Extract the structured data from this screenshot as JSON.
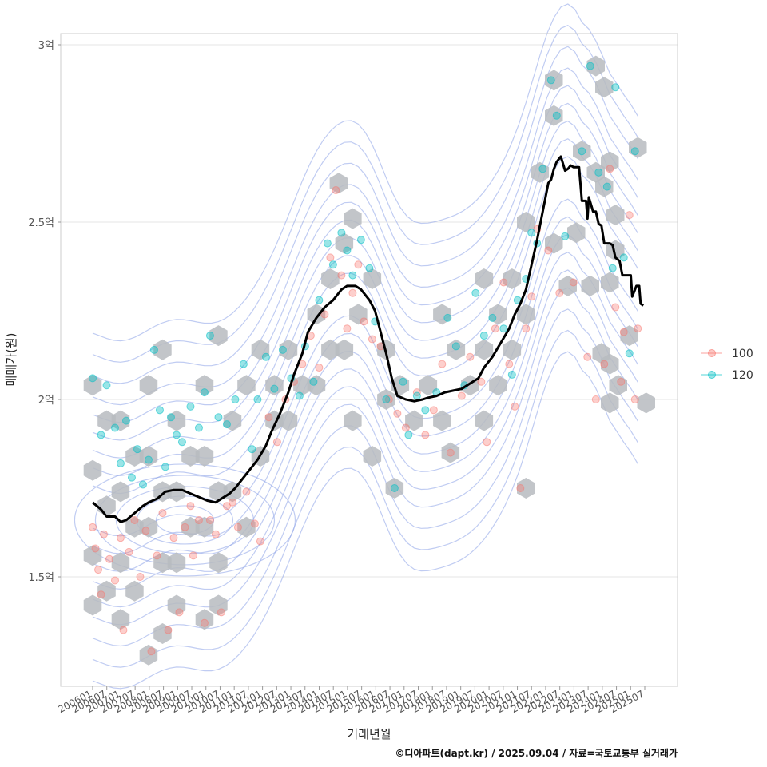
{
  "chart_data": {
    "type": "scatter",
    "title": "",
    "xlabel": "거래년월",
    "ylabel": "매매가(원)",
    "caption": "©디아파트(dapt.kr) / 2025.09.04 / 자료=국토교통부 실거래가",
    "x_domain": [
      2006.0,
      2025.75
    ],
    "ylim": [
      1.2,
      3.05
    ],
    "y_ticks": [
      {
        "value": 1.5,
        "label": "1.5억"
      },
      {
        "value": 2.0,
        "label": "2억"
      },
      {
        "value": 2.5,
        "label": "2.5억"
      },
      {
        "value": 3.0,
        "label": "3억"
      }
    ],
    "x_ticks": [
      "200601",
      "200607",
      "200701",
      "200707",
      "200801",
      "200807",
      "200901",
      "200907",
      "201001",
      "201007",
      "201101",
      "201107",
      "201201",
      "201207",
      "201301",
      "201307",
      "201401",
      "201407",
      "201501",
      "201507",
      "201601",
      "201607",
      "201701",
      "201707",
      "201801",
      "201807",
      "201901",
      "201907",
      "202001",
      "202007",
      "202101",
      "202107",
      "202201",
      "202207",
      "202301",
      "202307",
      "202401",
      "202407",
      "202501",
      "202507"
    ],
    "legend": {
      "position": "right",
      "entries": [
        {
          "name": "100",
          "color": "#F8766D"
        },
        {
          "name": "120",
          "color": "#00BFC4"
        }
      ]
    },
    "hex_color": "#B7BBC0",
    "contour_color": "#8DA2E8",
    "trend_line": {
      "name": "moving-average",
      "color": "#000000",
      "points": [
        [
          2006.0,
          1.71
        ],
        [
          2006.3,
          1.69
        ],
        [
          2006.5,
          1.67
        ],
        [
          2006.8,
          1.67
        ],
        [
          2007.0,
          1.655
        ],
        [
          2007.2,
          1.66
        ],
        [
          2007.5,
          1.68
        ],
        [
          2007.8,
          1.7
        ],
        [
          2008.0,
          1.71
        ],
        [
          2008.3,
          1.72
        ],
        [
          2008.6,
          1.74
        ],
        [
          2008.9,
          1.745
        ],
        [
          2009.2,
          1.745
        ],
        [
          2009.5,
          1.735
        ],
        [
          2009.8,
          1.725
        ],
        [
          2010.1,
          1.715
        ],
        [
          2010.4,
          1.71
        ],
        [
          2010.6,
          1.72
        ],
        [
          2010.9,
          1.735
        ],
        [
          2011.1,
          1.75
        ],
        [
          2011.3,
          1.77
        ],
        [
          2011.6,
          1.8
        ],
        [
          2011.9,
          1.83
        ],
        [
          2012.2,
          1.87
        ],
        [
          2012.4,
          1.91
        ],
        [
          2012.7,
          1.96
        ],
        [
          2013.0,
          2.02
        ],
        [
          2013.2,
          2.07
        ],
        [
          2013.5,
          2.13
        ],
        [
          2013.7,
          2.19
        ],
        [
          2014.0,
          2.23
        ],
        [
          2014.3,
          2.26
        ],
        [
          2014.6,
          2.28
        ],
        [
          2014.9,
          2.31
        ],
        [
          2015.1,
          2.32
        ],
        [
          2015.4,
          2.32
        ],
        [
          2015.6,
          2.31
        ],
        [
          2015.9,
          2.28
        ],
        [
          2016.1,
          2.25
        ],
        [
          2016.3,
          2.19
        ],
        [
          2016.5,
          2.13
        ],
        [
          2016.7,
          2.06
        ],
        [
          2016.9,
          2.01
        ],
        [
          2017.2,
          2.0
        ],
        [
          2017.5,
          1.995
        ],
        [
          2017.8,
          2.0
        ],
        [
          2018.0,
          2.005
        ],
        [
          2018.3,
          2.01
        ],
        [
          2018.6,
          2.02
        ],
        [
          2018.9,
          2.025
        ],
        [
          2019.2,
          2.03
        ],
        [
          2019.5,
          2.045
        ],
        [
          2019.8,
          2.06
        ],
        [
          2020.0,
          2.09
        ],
        [
          2020.3,
          2.12
        ],
        [
          2020.6,
          2.16
        ],
        [
          2020.9,
          2.2
        ],
        [
          2021.1,
          2.24
        ],
        [
          2021.3,
          2.27
        ],
        [
          2021.5,
          2.31
        ],
        [
          2021.7,
          2.38
        ],
        [
          2021.9,
          2.45
        ],
        [
          2022.1,
          2.53
        ],
        [
          2022.3,
          2.61
        ],
        [
          2022.4,
          2.62
        ],
        [
          2022.5,
          2.65
        ],
        [
          2022.6,
          2.67
        ],
        [
          2022.75,
          2.685
        ],
        [
          2022.9,
          2.645
        ],
        [
          2023.0,
          2.65
        ],
        [
          2023.1,
          2.66
        ],
        [
          2023.2,
          2.655
        ],
        [
          2023.4,
          2.655
        ],
        [
          2023.5,
          2.56
        ],
        [
          2023.65,
          2.56
        ],
        [
          2023.7,
          2.51
        ],
        [
          2023.75,
          2.57
        ],
        [
          2023.9,
          2.53
        ],
        [
          2024.0,
          2.53
        ],
        [
          2024.1,
          2.495
        ],
        [
          2024.2,
          2.49
        ],
        [
          2024.3,
          2.44
        ],
        [
          2024.5,
          2.44
        ],
        [
          2024.6,
          2.435
        ],
        [
          2024.7,
          2.4
        ],
        [
          2024.85,
          2.39
        ],
        [
          2024.95,
          2.35
        ],
        [
          2025.1,
          2.35
        ],
        [
          2025.25,
          2.35
        ],
        [
          2025.3,
          2.29
        ],
        [
          2025.45,
          2.32
        ],
        [
          2025.55,
          2.32
        ],
        [
          2025.6,
          2.27
        ],
        [
          2025.7,
          2.265
        ]
      ]
    },
    "points_series_100": [
      [
        2006.0,
        1.64
      ],
      [
        2006.1,
        1.58
      ],
      [
        2006.2,
        1.52
      ],
      [
        2006.3,
        1.45
      ],
      [
        2006.4,
        1.62
      ],
      [
        2006.6,
        1.55
      ],
      [
        2006.8,
        1.49
      ],
      [
        2007.0,
        1.61
      ],
      [
        2007.1,
        1.35
      ],
      [
        2007.3,
        1.57
      ],
      [
        2007.5,
        1.66
      ],
      [
        2007.7,
        1.5
      ],
      [
        2007.9,
        1.63
      ],
      [
        2008.1,
        1.29
      ],
      [
        2008.3,
        1.56
      ],
      [
        2008.5,
        1.68
      ],
      [
        2008.7,
        1.35
      ],
      [
        2008.9,
        1.61
      ],
      [
        2009.1,
        1.4
      ],
      [
        2009.3,
        1.64
      ],
      [
        2009.5,
        1.7
      ],
      [
        2009.6,
        1.56
      ],
      [
        2009.8,
        1.66
      ],
      [
        2010.0,
        1.37
      ],
      [
        2010.2,
        1.66
      ],
      [
        2010.4,
        1.62
      ],
      [
        2010.6,
        1.4
      ],
      [
        2010.8,
        1.7
      ],
      [
        2011.0,
        1.71
      ],
      [
        2011.2,
        1.64
      ],
      [
        2011.5,
        1.74
      ],
      [
        2011.8,
        1.65
      ],
      [
        2012.0,
        1.6
      ],
      [
        2012.3,
        1.95
      ],
      [
        2012.6,
        1.88
      ],
      [
        2012.9,
        2.0
      ],
      [
        2013.2,
        2.05
      ],
      [
        2013.5,
        2.1
      ],
      [
        2013.8,
        2.18
      ],
      [
        2014.1,
        2.09
      ],
      [
        2014.3,
        2.24
      ],
      [
        2014.5,
        2.4
      ],
      [
        2014.7,
        2.59
      ],
      [
        2014.9,
        2.35
      ],
      [
        2015.1,
        2.2
      ],
      [
        2015.3,
        2.3
      ],
      [
        2015.5,
        2.38
      ],
      [
        2015.7,
        2.22
      ],
      [
        2016.0,
        2.17
      ],
      [
        2016.3,
        2.15
      ],
      [
        2016.6,
        2.0
      ],
      [
        2016.9,
        1.96
      ],
      [
        2017.2,
        1.92
      ],
      [
        2017.6,
        2.02
      ],
      [
        2017.9,
        1.9
      ],
      [
        2018.2,
        1.97
      ],
      [
        2018.5,
        2.1
      ],
      [
        2018.8,
        1.85
      ],
      [
        2019.2,
        2.01
      ],
      [
        2019.5,
        2.12
      ],
      [
        2019.9,
        2.05
      ],
      [
        2020.1,
        1.88
      ],
      [
        2020.4,
        2.2
      ],
      [
        2020.7,
        2.33
      ],
      [
        2020.9,
        2.1
      ],
      [
        2021.1,
        1.98
      ],
      [
        2021.3,
        1.75
      ],
      [
        2021.5,
        2.2
      ],
      [
        2021.7,
        2.29
      ],
      [
        2021.9,
        2.48
      ],
      [
        2022.3,
        2.42
      ],
      [
        2022.7,
        2.3
      ],
      [
        2023.2,
        2.33
      ],
      [
        2023.7,
        2.12
      ],
      [
        2024.0,
        2.0
      ],
      [
        2024.3,
        2.1
      ],
      [
        2024.5,
        2.65
      ],
      [
        2024.9,
        2.05
      ],
      [
        2025.0,
        2.19
      ],
      [
        2025.2,
        2.52
      ],
      [
        2025.4,
        2.0
      ],
      [
        2025.5,
        2.2
      ],
      [
        2024.7,
        2.26
      ]
    ],
    "points_series_120": [
      [
        2006.0,
        2.06
      ],
      [
        2006.3,
        1.9
      ],
      [
        2006.5,
        2.04
      ],
      [
        2006.8,
        1.92
      ],
      [
        2007.0,
        1.82
      ],
      [
        2007.2,
        1.94
      ],
      [
        2007.4,
        1.78
      ],
      [
        2007.6,
        1.86
      ],
      [
        2007.8,
        1.76
      ],
      [
        2008.0,
        1.83
      ],
      [
        2008.2,
        2.14
      ],
      [
        2008.4,
        1.97
      ],
      [
        2008.6,
        1.81
      ],
      [
        2008.8,
        1.95
      ],
      [
        2009.0,
        1.9
      ],
      [
        2009.2,
        1.88
      ],
      [
        2009.5,
        1.98
      ],
      [
        2009.8,
        1.92
      ],
      [
        2010.0,
        2.02
      ],
      [
        2010.2,
        2.18
      ],
      [
        2010.5,
        1.95
      ],
      [
        2010.8,
        1.93
      ],
      [
        2011.1,
        2.0
      ],
      [
        2011.4,
        2.1
      ],
      [
        2011.7,
        1.86
      ],
      [
        2011.9,
        2.0
      ],
      [
        2012.2,
        2.12
      ],
      [
        2012.5,
        2.03
      ],
      [
        2012.8,
        2.14
      ],
      [
        2013.1,
        2.06
      ],
      [
        2013.4,
        2.01
      ],
      [
        2013.6,
        2.15
      ],
      [
        2013.9,
        2.05
      ],
      [
        2014.1,
        2.28
      ],
      [
        2014.4,
        2.44
      ],
      [
        2014.6,
        2.38
      ],
      [
        2014.9,
        2.47
      ],
      [
        2015.1,
        2.42
      ],
      [
        2015.3,
        2.35
      ],
      [
        2015.6,
        2.45
      ],
      [
        2015.9,
        2.37
      ],
      [
        2016.1,
        2.22
      ],
      [
        2016.5,
        2.0
      ],
      [
        2016.8,
        1.75
      ],
      [
        2017.1,
        2.05
      ],
      [
        2017.3,
        1.9
      ],
      [
        2017.6,
        2.01
      ],
      [
        2017.9,
        1.97
      ],
      [
        2018.3,
        2.02
      ],
      [
        2018.7,
        2.23
      ],
      [
        2019.0,
        2.15
      ],
      [
        2019.3,
        2.04
      ],
      [
        2019.7,
        2.3
      ],
      [
        2020.0,
        2.18
      ],
      [
        2020.3,
        2.23
      ],
      [
        2020.7,
        2.2
      ],
      [
        2021.0,
        2.07
      ],
      [
        2021.2,
        2.28
      ],
      [
        2021.5,
        2.34
      ],
      [
        2021.7,
        2.47
      ],
      [
        2021.9,
        2.44
      ],
      [
        2022.1,
        2.65
      ],
      [
        2022.4,
        2.9
      ],
      [
        2022.6,
        2.8
      ],
      [
        2022.9,
        2.46
      ],
      [
        2023.5,
        2.7
      ],
      [
        2023.8,
        2.94
      ],
      [
        2024.1,
        2.64
      ],
      [
        2024.4,
        2.6
      ],
      [
        2024.7,
        2.88
      ],
      [
        2025.0,
        2.4
      ],
      [
        2025.2,
        2.13
      ],
      [
        2025.4,
        2.7
      ],
      [
        2024.6,
        2.37
      ]
    ],
    "hexbins": [
      [
        2006.0,
        2.04
      ],
      [
        2006.5,
        1.94
      ],
      [
        2006.0,
        1.8
      ],
      [
        2006.5,
        1.7
      ],
      [
        2006.0,
        1.56
      ],
      [
        2006.5,
        1.46
      ],
      [
        2006.0,
        1.42
      ],
      [
        2007.0,
        1.94
      ],
      [
        2007.5,
        1.84
      ],
      [
        2007.0,
        1.74
      ],
      [
        2007.5,
        1.64
      ],
      [
        2007.0,
        1.54
      ],
      [
        2007.5,
        1.46
      ],
      [
        2007.0,
        1.38
      ],
      [
        2008.0,
        2.04
      ],
      [
        2008.5,
        2.14
      ],
      [
        2008.0,
        1.84
      ],
      [
        2008.5,
        1.74
      ],
      [
        2008.0,
        1.64
      ],
      [
        2008.5,
        1.54
      ],
      [
        2008.0,
        1.28
      ],
      [
        2008.5,
        1.34
      ],
      [
        2009.0,
        1.94
      ],
      [
        2009.5,
        1.84
      ],
      [
        2009.0,
        1.74
      ],
      [
        2009.5,
        1.64
      ],
      [
        2009.0,
        1.54
      ],
      [
        2009.0,
        1.42
      ],
      [
        2010.0,
        2.04
      ],
      [
        2010.5,
        2.18
      ],
      [
        2010.0,
        1.84
      ],
      [
        2010.5,
        1.74
      ],
      [
        2010.0,
        1.64
      ],
      [
        2010.5,
        1.54
      ],
      [
        2010.0,
        1.38
      ],
      [
        2010.5,
        1.42
      ],
      [
        2011.0,
        1.94
      ],
      [
        2011.5,
        2.04
      ],
      [
        2011.0,
        1.74
      ],
      [
        2011.5,
        1.64
      ],
      [
        2012.0,
        2.14
      ],
      [
        2012.5,
        2.04
      ],
      [
        2012.0,
        1.84
      ],
      [
        2012.5,
        1.94
      ],
      [
        2013.0,
        2.14
      ],
      [
        2013.5,
        2.04
      ],
      [
        2013.0,
        1.94
      ],
      [
        2014.0,
        2.24
      ],
      [
        2014.5,
        2.14
      ],
      [
        2014.0,
        2.04
      ],
      [
        2014.5,
        2.34
      ],
      [
        2014.8,
        2.61
      ],
      [
        2015.0,
        2.44
      ],
      [
        2015.3,
        2.51
      ],
      [
        2015.5,
        2.24
      ],
      [
        2015.0,
        2.14
      ],
      [
        2015.3,
        1.94
      ],
      [
        2016.0,
        2.34
      ],
      [
        2016.5,
        2.14
      ],
      [
        2016.5,
        2.0
      ],
      [
        2017.0,
        2.04
      ],
      [
        2017.5,
        1.94
      ],
      [
        2016.0,
        1.84
      ],
      [
        2016.8,
        1.75
      ],
      [
        2018.0,
        2.04
      ],
      [
        2018.5,
        1.94
      ],
      [
        2018.5,
        2.24
      ],
      [
        2019.0,
        2.14
      ],
      [
        2019.5,
        2.04
      ],
      [
        2018.8,
        1.85
      ],
      [
        2020.0,
        2.34
      ],
      [
        2020.5,
        2.24
      ],
      [
        2020.0,
        2.14
      ],
      [
        2020.5,
        2.04
      ],
      [
        2020.0,
        1.94
      ],
      [
        2021.0,
        2.34
      ],
      [
        2021.5,
        2.24
      ],
      [
        2021.0,
        2.14
      ],
      [
        2021.5,
        2.5
      ],
      [
        2021.5,
        1.75
      ],
      [
        2022.0,
        2.64
      ],
      [
        2022.5,
        2.9
      ],
      [
        2022.5,
        2.8
      ],
      [
        2022.5,
        2.44
      ],
      [
        2023.0,
        2.32
      ],
      [
        2023.5,
        2.7
      ],
      [
        2023.3,
        2.47
      ],
      [
        2023.8,
        2.32
      ],
      [
        2024.0,
        2.94
      ],
      [
        2024.3,
        2.88
      ],
      [
        2024.0,
        2.64
      ],
      [
        2024.5,
        2.67
      ],
      [
        2024.3,
        2.6
      ],
      [
        2024.7,
        2.52
      ],
      [
        2024.7,
        2.42
      ],
      [
        2024.5,
        2.33
      ],
      [
        2024.2,
        2.13
      ],
      [
        2024.5,
        2.1
      ],
      [
        2024.8,
        2.04
      ],
      [
        2024.5,
        1.99
      ],
      [
        2025.2,
        2.18
      ],
      [
        2025.5,
        2.71
      ],
      [
        2025.8,
        1.99
      ]
    ]
  }
}
